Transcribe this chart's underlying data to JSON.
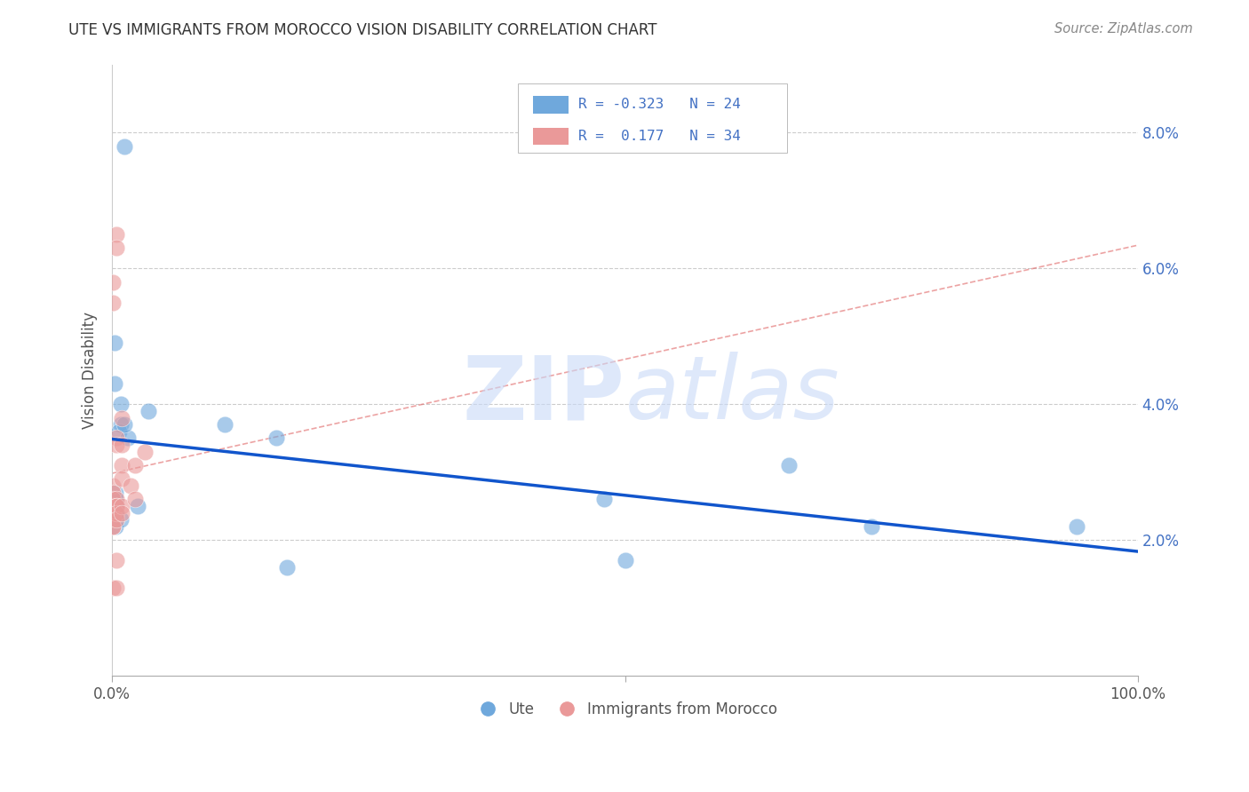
{
  "title": "UTE VS IMMIGRANTS FROM MOROCCO VISION DISABILITY CORRELATION CHART",
  "source": "Source: ZipAtlas.com",
  "ylabel": "Vision Disability",
  "watermark": "ZIPatlas",
  "ute_color": "#6fa8dc",
  "morocco_color": "#ea9999",
  "trendline_ute_color": "#1155cc",
  "trendline_morocco_color": "#e06666",
  "xlim": [
    0.0,
    1.0
  ],
  "ylim": [
    0.0,
    0.09
  ],
  "yticks": [
    0.02,
    0.04,
    0.06,
    0.08
  ],
  "ytick_labels": [
    "2.0%",
    "4.0%",
    "6.0%",
    "8.0%"
  ],
  "ute_x": [
    0.012,
    0.11,
    0.002,
    0.002,
    0.008,
    0.008,
    0.007,
    0.015,
    0.003,
    0.003,
    0.004,
    0.003,
    0.003,
    0.008,
    0.012,
    0.025,
    0.035,
    0.16,
    0.17,
    0.48,
    0.5,
    0.66,
    0.74,
    0.94
  ],
  "ute_y": [
    0.078,
    0.037,
    0.049,
    0.043,
    0.04,
    0.037,
    0.036,
    0.035,
    0.027,
    0.026,
    0.025,
    0.024,
    0.022,
    0.023,
    0.037,
    0.025,
    0.039,
    0.035,
    0.016,
    0.026,
    0.017,
    0.031,
    0.022,
    0.022
  ],
  "morocco_x": [
    0.001,
    0.001,
    0.001,
    0.001,
    0.001,
    0.001,
    0.001,
    0.001,
    0.001,
    0.001,
    0.001,
    0.001,
    0.001,
    0.004,
    0.004,
    0.004,
    0.004,
    0.004,
    0.004,
    0.004,
    0.004,
    0.004,
    0.004,
    0.004,
    0.009,
    0.009,
    0.009,
    0.009,
    0.009,
    0.009,
    0.018,
    0.022,
    0.022,
    0.032
  ],
  "morocco_y": [
    0.058,
    0.055,
    0.028,
    0.027,
    0.026,
    0.025,
    0.025,
    0.024,
    0.024,
    0.023,
    0.022,
    0.022,
    0.013,
    0.065,
    0.063,
    0.035,
    0.034,
    0.026,
    0.025,
    0.025,
    0.024,
    0.023,
    0.017,
    0.013,
    0.038,
    0.034,
    0.031,
    0.029,
    0.025,
    0.024,
    0.028,
    0.031,
    0.026,
    0.033
  ]
}
